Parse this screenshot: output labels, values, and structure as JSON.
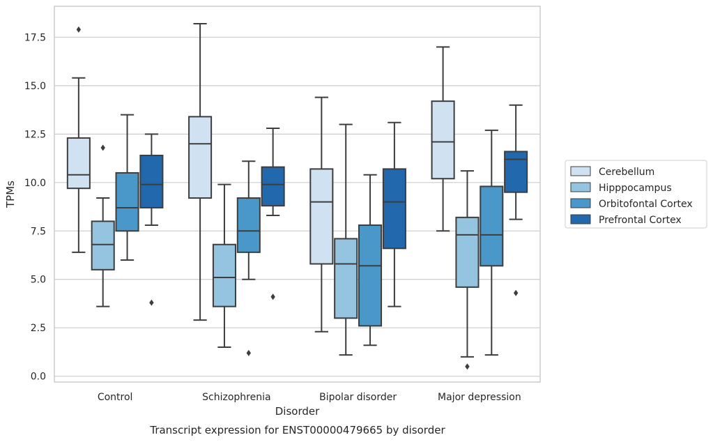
{
  "chart_data": {
    "type": "boxplot",
    "caption": "Transcript expression for ENST00000479665 by disorder",
    "xlabel": "Disorder",
    "ylabel": "TPMs",
    "ylim": [
      -0.3,
      19.1
    ],
    "yticks": [
      "0.0",
      "2.5",
      "5.0",
      "7.5",
      "10.0",
      "12.5",
      "15.0",
      "17.5"
    ],
    "ytick_values": [
      0,
      2.5,
      5,
      7.5,
      10,
      12.5,
      15,
      17.5
    ],
    "grid": true,
    "legend_position": "right",
    "categories": [
      "Control",
      "Schizophrenia",
      "Bipolar disorder",
      "Major depression"
    ],
    "series": [
      {
        "name": "Cerebellum",
        "color": "#d0e1f2",
        "boxes": [
          {
            "whislo": 6.4,
            "q1": 9.7,
            "med": 10.4,
            "q3": 12.3,
            "whishi": 15.4,
            "fliers": [
              17.9
            ]
          },
          {
            "whislo": 2.9,
            "q1": 9.2,
            "med": 12.0,
            "q3": 13.4,
            "whishi": 18.2,
            "fliers": []
          },
          {
            "whislo": 2.3,
            "q1": 5.8,
            "med": 9.0,
            "q3": 10.7,
            "whishi": 14.4,
            "fliers": []
          },
          {
            "whislo": 7.5,
            "q1": 10.2,
            "med": 12.1,
            "q3": 14.2,
            "whishi": 17.0,
            "fliers": []
          }
        ]
      },
      {
        "name": "Hipppocampus",
        "color": "#94c4df",
        "boxes": [
          {
            "whislo": 3.6,
            "q1": 5.5,
            "med": 6.8,
            "q3": 8.0,
            "whishi": 9.2,
            "fliers": [
              11.8
            ]
          },
          {
            "whislo": 1.5,
            "q1": 3.6,
            "med": 5.1,
            "q3": 6.8,
            "whishi": 9.9,
            "fliers": []
          },
          {
            "whislo": 1.1,
            "q1": 3.0,
            "med": 5.8,
            "q3": 7.1,
            "whishi": 13.0,
            "fliers": []
          },
          {
            "whislo": 1.0,
            "q1": 4.6,
            "med": 7.3,
            "q3": 8.2,
            "whishi": 10.6,
            "fliers": [
              0.5
            ]
          }
        ]
      },
      {
        "name": "Orbitofontal Cortex",
        "color": "#4a98c9",
        "boxes": [
          {
            "whislo": 6.0,
            "q1": 7.5,
            "med": 8.7,
            "q3": 10.5,
            "whishi": 13.5,
            "fliers": []
          },
          {
            "whislo": 5.0,
            "q1": 6.4,
            "med": 7.5,
            "q3": 9.2,
            "whishi": 11.1,
            "fliers": [
              1.2
            ]
          },
          {
            "whislo": 1.6,
            "q1": 2.6,
            "med": 5.7,
            "q3": 7.8,
            "whishi": 10.4,
            "fliers": []
          },
          {
            "whislo": 1.1,
            "q1": 5.7,
            "med": 7.3,
            "q3": 9.8,
            "whishi": 12.7,
            "fliers": []
          }
        ]
      },
      {
        "name": "Prefrontal Cortex",
        "color": "#2268ad",
        "boxes": [
          {
            "whislo": 7.8,
            "q1": 8.7,
            "med": 9.9,
            "q3": 11.4,
            "whishi": 12.5,
            "fliers": [
              3.8
            ]
          },
          {
            "whislo": 8.3,
            "q1": 8.8,
            "med": 9.9,
            "q3": 10.8,
            "whishi": 12.8,
            "fliers": [
              4.1
            ]
          },
          {
            "whislo": 3.6,
            "q1": 6.6,
            "med": 9.0,
            "q3": 10.7,
            "whishi": 13.1,
            "fliers": []
          },
          {
            "whislo": 8.1,
            "q1": 9.5,
            "med": 11.2,
            "q3": 11.6,
            "whishi": 14.0,
            "fliers": [
              4.3
            ]
          }
        ]
      }
    ]
  }
}
